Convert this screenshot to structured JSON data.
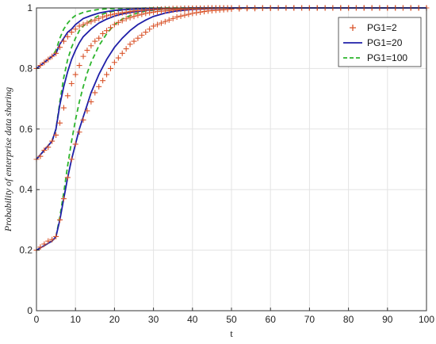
{
  "chart_data": {
    "type": "line",
    "xlabel": "t",
    "ylabel": "Probability of enterprise data sharing",
    "xlim": [
      0,
      100
    ],
    "ylim": [
      0,
      1
    ],
    "xticks": [
      0,
      10,
      20,
      30,
      40,
      50,
      60,
      70,
      80,
      90,
      100
    ],
    "yticks": [
      0,
      0.2,
      0.4,
      0.6,
      0.8,
      1
    ],
    "ytick_labels": [
      "0",
      "0.2",
      "0.4",
      "0.6",
      "0.8",
      "1"
    ],
    "grid": true,
    "legend": {
      "position": "top-right",
      "entries": [
        {
          "label": "PG1=2",
          "style": "plus-marker",
          "color": "#d9542b"
        },
        {
          "label": "PG1=20",
          "style": "solid-line",
          "color": "#1f1fa8"
        },
        {
          "label": "PG1=100",
          "style": "dashed-line",
          "color": "#2db52d"
        }
      ]
    },
    "series": [
      {
        "name": "PG1=2",
        "initial": 0.8,
        "style": "plus-marker",
        "color": "#d9542b",
        "x": [
          0,
          1,
          2,
          3,
          4,
          5,
          6,
          7,
          8,
          9,
          10,
          11,
          12,
          13,
          14,
          15,
          16,
          17,
          18,
          19,
          20,
          21,
          22,
          23,
          24,
          25,
          26,
          27,
          28,
          29,
          30,
          31,
          32,
          33,
          34,
          35,
          36,
          37,
          38,
          39,
          40,
          41,
          42,
          43,
          44,
          45,
          46,
          47,
          48,
          49,
          50,
          52,
          54,
          56,
          58,
          60,
          62,
          64,
          66,
          68,
          70,
          72,
          74,
          76,
          78,
          80,
          82,
          84,
          86,
          88,
          90,
          92,
          94,
          96,
          98,
          100
        ],
        "y": [
          0.8,
          0.81,
          0.82,
          0.83,
          0.84,
          0.85,
          0.87,
          0.89,
          0.905,
          0.92,
          0.93,
          0.94,
          0.945,
          0.95,
          0.955,
          0.96,
          0.965,
          0.97,
          0.974,
          0.977,
          0.98,
          0.982,
          0.984,
          0.986,
          0.988,
          0.99,
          0.991,
          0.992,
          0.993,
          0.994,
          0.995,
          0.996,
          0.996,
          0.997,
          0.997,
          0.998,
          0.998,
          0.998,
          0.999,
          0.999,
          0.999,
          0.999,
          0.999,
          0.999,
          1,
          1,
          1,
          1,
          1,
          1,
          1,
          1,
          1,
          1,
          1,
          1,
          1,
          1,
          1,
          1,
          1,
          1,
          1,
          1,
          1,
          1,
          1,
          1,
          1,
          1,
          1,
          1,
          1,
          1,
          1,
          1
        ]
      },
      {
        "name": "PG1=20",
        "initial": 0.8,
        "style": "solid-line",
        "color": "#1f1fa8",
        "x": [
          0,
          2,
          4,
          5,
          6,
          7,
          8,
          9,
          10,
          12,
          14,
          16,
          18,
          20,
          22,
          25,
          28,
          32,
          36,
          40,
          50,
          60,
          70,
          80,
          90,
          100
        ],
        "y": [
          0.8,
          0.82,
          0.84,
          0.85,
          0.88,
          0.9,
          0.92,
          0.93,
          0.945,
          0.965,
          0.975,
          0.983,
          0.988,
          0.992,
          0.994,
          0.996,
          0.998,
          0.999,
          0.999,
          1,
          1,
          1,
          1,
          1,
          1,
          1
        ]
      },
      {
        "name": "PG1=100",
        "initial": 0.8,
        "style": "dashed-line",
        "color": "#2db52d",
        "x": [
          0,
          2,
          4,
          5,
          6,
          7,
          8,
          9,
          10,
          12,
          14,
          16,
          18,
          20,
          25,
          30,
          40,
          50,
          60,
          70,
          80,
          90,
          100
        ],
        "y": [
          0.8,
          0.82,
          0.84,
          0.86,
          0.9,
          0.93,
          0.95,
          0.965,
          0.975,
          0.985,
          0.991,
          0.995,
          0.997,
          0.998,
          0.999,
          1,
          1,
          1,
          1,
          1,
          1,
          1,
          1
        ]
      },
      {
        "name": "PG1=2",
        "initial": 0.5,
        "style": "plus-marker",
        "color": "#d9542b",
        "x": [
          0,
          1,
          2,
          3,
          4,
          5,
          6,
          7,
          8,
          9,
          10,
          11,
          12,
          13,
          14,
          15,
          16,
          17,
          18,
          19,
          20,
          21,
          22,
          23,
          24,
          25,
          26,
          27,
          28,
          29,
          30,
          31,
          32,
          33,
          34,
          35,
          36,
          37,
          38,
          39,
          40,
          41,
          42,
          43,
          44,
          45,
          46,
          47,
          48,
          49,
          50,
          52,
          54,
          56,
          58,
          60,
          62,
          64,
          66,
          68,
          70,
          72,
          74,
          76,
          78,
          80,
          82,
          84,
          86,
          88,
          90,
          92,
          94,
          96,
          98,
          100
        ],
        "y": [
          0.5,
          0.51,
          0.53,
          0.54,
          0.56,
          0.58,
          0.62,
          0.67,
          0.71,
          0.75,
          0.78,
          0.81,
          0.84,
          0.86,
          0.875,
          0.89,
          0.9,
          0.915,
          0.925,
          0.935,
          0.945,
          0.952,
          0.958,
          0.964,
          0.968,
          0.972,
          0.976,
          0.979,
          0.982,
          0.984,
          0.986,
          0.988,
          0.989,
          0.99,
          0.991,
          0.993,
          0.994,
          0.995,
          0.995,
          0.996,
          0.997,
          0.997,
          0.998,
          0.998,
          0.998,
          0.999,
          0.999,
          0.999,
          0.999,
          1,
          1,
          1,
          1,
          1,
          1,
          1,
          1,
          1,
          1,
          1,
          1,
          1,
          1,
          1,
          1,
          1,
          1,
          1,
          1,
          1,
          1,
          1,
          1,
          1,
          1,
          1
        ]
      },
      {
        "name": "PG1=20",
        "initial": 0.5,
        "style": "solid-line",
        "color": "#1f1fa8",
        "x": [
          0,
          2,
          4,
          5,
          6,
          7,
          8,
          9,
          10,
          11,
          12,
          14,
          16,
          18,
          20,
          22,
          25,
          28,
          32,
          36,
          40,
          45,
          50,
          60,
          70,
          80,
          90,
          100
        ],
        "y": [
          0.5,
          0.53,
          0.56,
          0.6,
          0.68,
          0.74,
          0.79,
          0.83,
          0.86,
          0.885,
          0.905,
          0.93,
          0.95,
          0.963,
          0.973,
          0.98,
          0.987,
          0.992,
          0.996,
          0.998,
          0.999,
          1,
          1,
          1,
          1,
          1,
          1,
          1
        ]
      },
      {
        "name": "PG1=100",
        "initial": 0.5,
        "style": "dashed-line",
        "color": "#2db52d",
        "x": [
          0,
          2,
          4,
          5,
          6,
          7,
          8,
          9,
          10,
          11,
          12,
          14,
          16,
          18,
          20,
          22,
          25,
          30,
          35,
          40,
          50,
          60,
          70,
          80,
          90,
          100
        ],
        "y": [
          0.5,
          0.53,
          0.56,
          0.6,
          0.69,
          0.77,
          0.83,
          0.87,
          0.9,
          0.925,
          0.94,
          0.96,
          0.975,
          0.984,
          0.99,
          0.993,
          0.996,
          0.998,
          0.999,
          1,
          1,
          1,
          1,
          1,
          1,
          1
        ]
      },
      {
        "name": "PG1=2",
        "initial": 0.2,
        "style": "plus-marker",
        "color": "#d9542b",
        "x": [
          0,
          1,
          2,
          3,
          4,
          5,
          6,
          7,
          8,
          9,
          10,
          11,
          12,
          13,
          14,
          15,
          16,
          17,
          18,
          19,
          20,
          21,
          22,
          23,
          24,
          25,
          26,
          27,
          28,
          29,
          30,
          31,
          32,
          33,
          34,
          35,
          36,
          37,
          38,
          39,
          40,
          41,
          42,
          43,
          44,
          45,
          46,
          47,
          48,
          49,
          50,
          52,
          54,
          56,
          58,
          60,
          62,
          64,
          66,
          68,
          70,
          72,
          74,
          76,
          78,
          80,
          82,
          84,
          86,
          88,
          90,
          92,
          94,
          96,
          98,
          100
        ],
        "y": [
          0.2,
          0.21,
          0.22,
          0.23,
          0.235,
          0.245,
          0.3,
          0.37,
          0.44,
          0.5,
          0.55,
          0.59,
          0.63,
          0.66,
          0.69,
          0.72,
          0.74,
          0.76,
          0.78,
          0.8,
          0.82,
          0.835,
          0.85,
          0.865,
          0.88,
          0.89,
          0.9,
          0.91,
          0.92,
          0.93,
          0.94,
          0.945,
          0.95,
          0.955,
          0.96,
          0.965,
          0.97,
          0.973,
          0.976,
          0.979,
          0.982,
          0.984,
          0.986,
          0.988,
          0.99,
          0.991,
          0.992,
          0.993,
          0.994,
          0.995,
          0.996,
          0.997,
          0.998,
          0.998,
          0.999,
          0.999,
          1,
          1,
          1,
          1,
          1,
          1,
          1,
          1,
          1,
          1,
          1,
          1,
          1,
          1,
          1,
          1,
          1,
          1,
          1,
          1
        ]
      },
      {
        "name": "PG1=20",
        "initial": 0.2,
        "style": "solid-line",
        "color": "#1f1fa8",
        "x": [
          0,
          2,
          4,
          5,
          6,
          7,
          8,
          9,
          10,
          11,
          12,
          13,
          14,
          16,
          18,
          20,
          22,
          24,
          26,
          28,
          30,
          33,
          36,
          40,
          45,
          50,
          60,
          70,
          80,
          90,
          100
        ],
        "y": [
          0.2,
          0.215,
          0.23,
          0.245,
          0.3,
          0.37,
          0.44,
          0.5,
          0.55,
          0.6,
          0.64,
          0.68,
          0.72,
          0.78,
          0.83,
          0.87,
          0.9,
          0.925,
          0.945,
          0.96,
          0.972,
          0.983,
          0.99,
          0.995,
          0.998,
          1,
          1,
          1,
          1,
          1,
          1
        ]
      },
      {
        "name": "PG1=100",
        "initial": 0.2,
        "style": "dashed-line",
        "color": "#2db52d",
        "x": [
          0,
          2,
          4,
          5,
          6,
          7,
          8,
          9,
          10,
          11,
          12,
          13,
          14,
          16,
          18,
          20,
          22,
          25,
          28,
          32,
          36,
          40,
          50,
          60,
          70,
          80,
          90,
          100
        ],
        "y": [
          0.2,
          0.215,
          0.23,
          0.245,
          0.31,
          0.39,
          0.48,
          0.56,
          0.63,
          0.69,
          0.74,
          0.785,
          0.82,
          0.875,
          0.915,
          0.945,
          0.963,
          0.98,
          0.99,
          0.995,
          0.998,
          0.999,
          1,
          1,
          1,
          1,
          1,
          1
        ]
      }
    ]
  }
}
